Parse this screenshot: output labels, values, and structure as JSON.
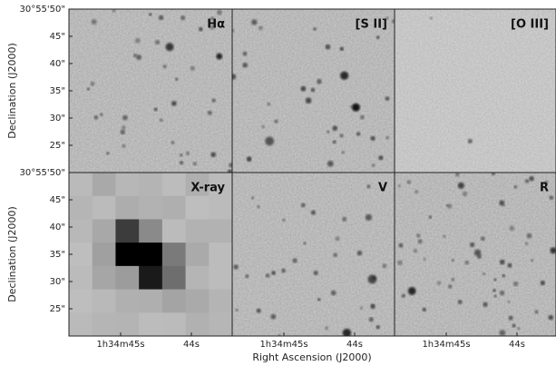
{
  "figure": {
    "panels": [
      "Hα",
      "[S II]",
      "[O III]",
      "X-ray",
      "V",
      "R"
    ],
    "y_ticks": [
      "30°55'50\"",
      "45\"",
      "40\"",
      "35\"",
      "30\"",
      "25\""
    ],
    "x_ticks": [
      "1h34m45s",
      "44s"
    ],
    "x_label": "Right Ascension (J2000)",
    "y_label": "Declination (J2000)"
  }
}
